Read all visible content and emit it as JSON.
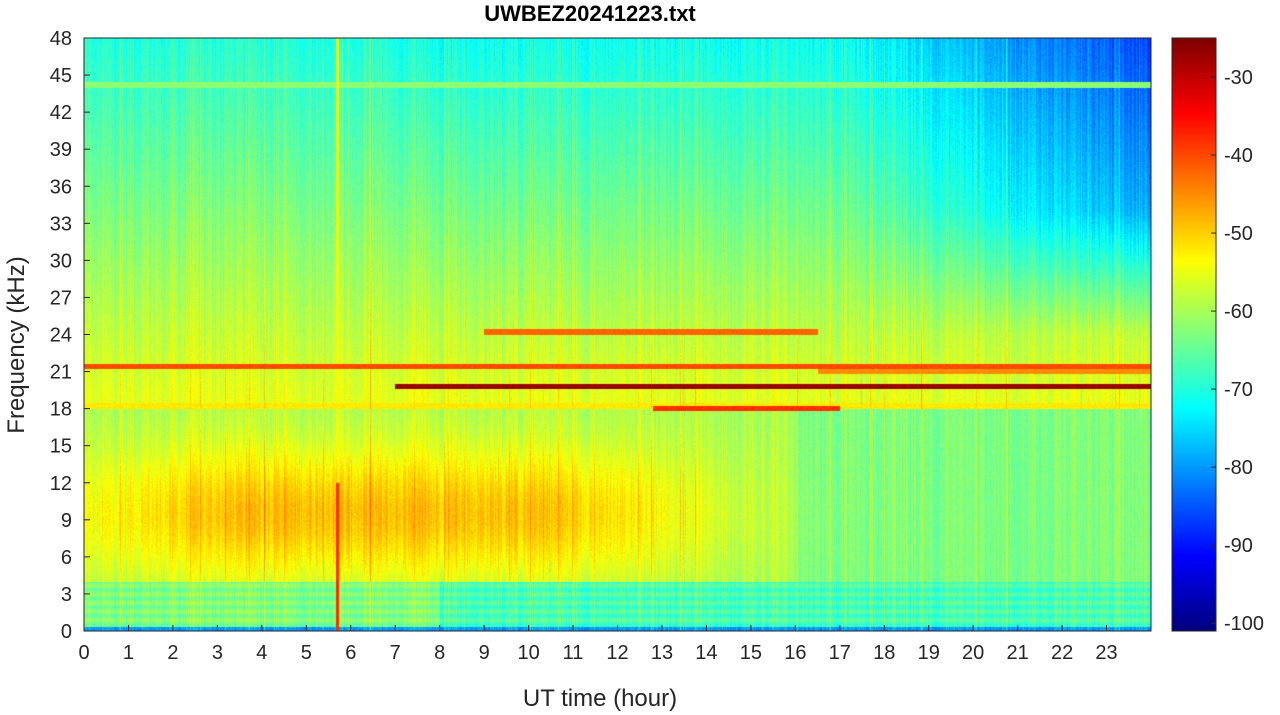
{
  "chart_data": {
    "type": "heatmap",
    "title": "UWBEZ20241223.txt",
    "xlabel": "UT time (hour)",
    "ylabel": "Frequency (kHz)",
    "xlim": [
      0,
      24
    ],
    "ylim": [
      0,
      48
    ],
    "xticks": [
      0,
      1,
      2,
      3,
      4,
      5,
      6,
      7,
      8,
      9,
      10,
      11,
      12,
      13,
      14,
      15,
      16,
      17,
      18,
      19,
      20,
      21,
      22,
      23
    ],
    "yticks": [
      0,
      3,
      6,
      9,
      12,
      15,
      18,
      21,
      24,
      27,
      30,
      33,
      36,
      39,
      42,
      45,
      48
    ],
    "colorbar": {
      "range": [
        -101,
        -25
      ],
      "ticks": [
        -100,
        -90,
        -80,
        -70,
        -60,
        -50,
        -40,
        -30
      ],
      "colormap": "jet"
    },
    "features": {
      "narrowband_lines_khz": [
        {
          "f": 19.8,
          "start": 7.0,
          "end": 24.0,
          "level_db": -27
        },
        {
          "f": 21.4,
          "start": 0.0,
          "end": 24.0,
          "level_db": -40
        },
        {
          "f": 18.2,
          "start": 0.0,
          "end": 24.0,
          "level_db": -52
        },
        {
          "f": 18.0,
          "start": 12.8,
          "end": 17.0,
          "level_db": -38
        },
        {
          "f": 24.2,
          "start": 9.0,
          "end": 16.5,
          "level_db": -42
        },
        {
          "f": 44.2,
          "start": 0.0,
          "end": 24.0,
          "level_db": -62
        },
        {
          "f": 21.0,
          "start": 16.5,
          "end": 24.0,
          "level_db": -45
        }
      ],
      "broadband_spike": {
        "time": 5.7,
        "fmin": 0,
        "fmax": 48,
        "level_db": -38
      },
      "band_hiss": {
        "fmin": 4,
        "fmax": 17,
        "peak_time": 4.5,
        "level_db": -44
      }
    }
  }
}
